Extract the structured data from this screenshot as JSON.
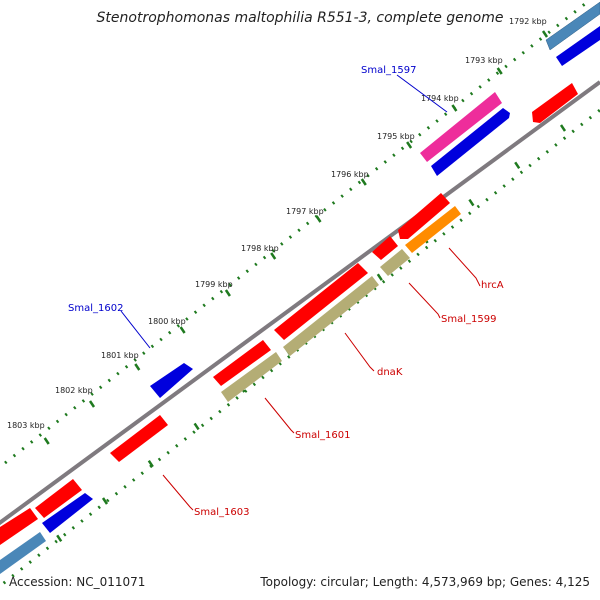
{
  "title": "Stenotrophomonas maltophilia R551-3, complete genome",
  "footer": {
    "accession": "Accession: NC_011071",
    "summary": "Topology: circular; Length: 4,573,969 bp; Genes: 4,125"
  },
  "colors": {
    "background": "#ffffff",
    "backbone": "#7f7a7f",
    "ruler": "#1f7a1f",
    "gene_forward_red": "#ff0000",
    "gene_reverse_blue": "#0000dd",
    "gene_magenta": "#ee2d9b",
    "gene_steelblue": "#4a87b8",
    "gene_orange": "#ff8c00",
    "gene_khaki": "#b4ad75",
    "label_blue": "#0000cc",
    "label_red": "#cc0000"
  },
  "ruler": {
    "unit": "kbp",
    "ticks": [
      "1792 kbp",
      "1793 kbp",
      "1794 kbp",
      "1795 kbp",
      "1796 kbp",
      "1797 kbp",
      "1798 kbp",
      "1799 kbp",
      "1800 kbp",
      "1801 kbp",
      "1802 kbp",
      "1803 kbp"
    ]
  },
  "gene_labels": [
    {
      "name": "Smal_1597",
      "color": "blue"
    },
    {
      "name": "Smal_1602",
      "color": "blue"
    },
    {
      "name": "hrcA",
      "color": "red"
    },
    {
      "name": "Smal_1599",
      "color": "red"
    },
    {
      "name": "dnaK",
      "color": "red"
    },
    {
      "name": "Smal_1601",
      "color": "red"
    },
    {
      "name": "Smal_1603",
      "color": "red"
    }
  ]
}
